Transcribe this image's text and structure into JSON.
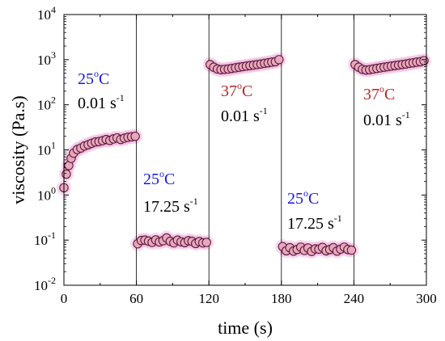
{
  "chart_data": {
    "type": "scatter",
    "xlabel": "time (s)",
    "ylabel": "viscosity (Pa.s)",
    "xlim": [
      0,
      300
    ],
    "ylim_log10": [
      -2,
      4
    ],
    "y_scale": "log",
    "x_ticks": [
      "0",
      "60",
      "120",
      "180",
      "240",
      "300"
    ],
    "y_tick_exponents": [
      "-2",
      "-1",
      "0",
      "1",
      "2",
      "3",
      "4"
    ],
    "y_tick_base": "10",
    "vertical_lines": [
      60,
      120,
      180,
      240
    ],
    "marker_color": "#e8a8bc",
    "marker_edge_color": "#5a1a38",
    "annotations": [
      {
        "temp": "25",
        "deg": "o",
        "unit": "C",
        "rate": "0.01 s",
        "rate_exp": "-1",
        "color": "#1a1ad6"
      },
      {
        "temp": "25",
        "deg": "o",
        "unit": "C",
        "rate": "17.25 s",
        "rate_exp": "-1",
        "color": "#1a1ad6"
      },
      {
        "temp": "37",
        "deg": "o",
        "unit": "C",
        "rate": "0.01 s",
        "rate_exp": "-1",
        "color": "#b02a2a"
      },
      {
        "temp": "25",
        "deg": "o",
        "unit": "C",
        "rate": "17.25 s",
        "rate_exp": "-1",
        "color": "#1a1ad6"
      },
      {
        "temp": "37",
        "deg": "o",
        "unit": "C",
        "rate": "0.01 s",
        "rate_exp": "-1",
        "color": "#b02a2a"
      }
    ],
    "series": [
      {
        "x": [
          0,
          2,
          4,
          6,
          8,
          11,
          14,
          17,
          20,
          23,
          26,
          29,
          32,
          35,
          38,
          41,
          44,
          47,
          50,
          53,
          56,
          59
        ],
        "y": [
          1.45,
          2.9,
          4.5,
          6.5,
          8.5,
          10.2,
          11,
          12.2,
          13,
          14,
          15,
          15.3,
          16,
          17,
          16.2,
          17.5,
          18.5,
          17,
          18.2,
          19,
          19.5,
          20
        ]
      },
      {
        "x": [
          61,
          64,
          67,
          70,
          73,
          76,
          79,
          82,
          85,
          88,
          91,
          94,
          97,
          100,
          103,
          106,
          109,
          112,
          115,
          118
        ],
        "y": [
          0.083,
          0.098,
          0.1,
          0.095,
          0.089,
          0.101,
          0.091,
          0.097,
          0.112,
          0.094,
          0.087,
          0.1,
          0.092,
          0.088,
          0.097,
          0.094,
          0.084,
          0.093,
          0.087,
          0.089
        ]
      },
      {
        "x": [
          121,
          124,
          127,
          130,
          133,
          136,
          139,
          142,
          145,
          148,
          151,
          154,
          157,
          160,
          163,
          166,
          169,
          172,
          175,
          178
        ],
        "y": [
          780,
          680,
          620,
          600,
          610,
          620,
          640,
          660,
          680,
          700,
          720,
          740,
          760,
          780,
          800,
          830,
          850,
          880,
          900,
          1000
        ]
      },
      {
        "x": [
          181,
          184,
          187,
          190,
          193,
          196,
          199,
          202,
          205,
          208,
          211,
          214,
          217,
          220,
          223,
          226,
          229,
          232,
          235,
          238
        ],
        "y": [
          0.072,
          0.058,
          0.068,
          0.057,
          0.062,
          0.07,
          0.059,
          0.067,
          0.056,
          0.064,
          0.063,
          0.069,
          0.058,
          0.062,
          0.068,
          0.057,
          0.063,
          0.07,
          0.062,
          0.06
        ]
      },
      {
        "x": [
          241,
          244,
          247,
          250,
          253,
          256,
          259,
          262,
          265,
          268,
          271,
          274,
          277,
          280,
          283,
          286,
          289,
          292,
          295,
          298
        ],
        "y": [
          780,
          680,
          610,
          590,
          600,
          620,
          640,
          660,
          680,
          700,
          720,
          740,
          760,
          780,
          800,
          830,
          850,
          880,
          900,
          950
        ]
      }
    ]
  }
}
